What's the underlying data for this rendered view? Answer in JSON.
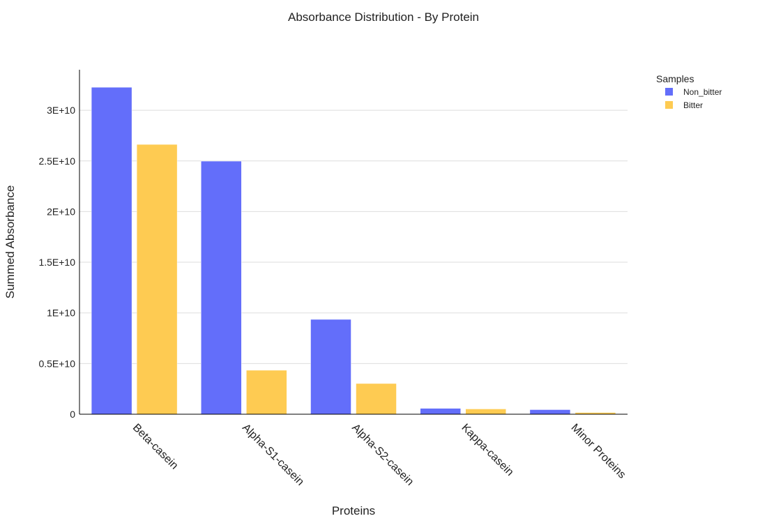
{
  "chart_data": {
    "type": "bar",
    "title": "Absorbance Distribution - By Protein",
    "xlabel": "Proteins",
    "ylabel": "Summed Absorbance",
    "categories": [
      "Beta-casein",
      "Alpha-S1-casein",
      "Alpha-S2-casein",
      "Kappa-casein",
      "Minor Proteins"
    ],
    "series": [
      {
        "name": "Non_bitter",
        "color": "#636efa",
        "values": [
          32270000000.0,
          24980000000.0,
          9360000000.0,
          580000000.0,
          450000000.0
        ]
      },
      {
        "name": "Bitter",
        "color": "#fecb52",
        "values": [
          26630000000.0,
          4340000000.0,
          3030000000.0,
          520000000.0,
          170000000.0
        ]
      }
    ],
    "ylim": [
      0,
      34000000000.0
    ],
    "yticks": [
      0,
      5000000000.0,
      10000000000.0,
      15000000000.0,
      20000000000.0,
      25000000000.0,
      30000000000.0
    ],
    "ytick_labels": [
      "0",
      "0.5E+10",
      "1E+10",
      "1.5E+10",
      "2E+10",
      "2.5E+10",
      "3E+10"
    ],
    "legend": {
      "title": "Samples",
      "placement": "top-right"
    },
    "grid": true
  }
}
